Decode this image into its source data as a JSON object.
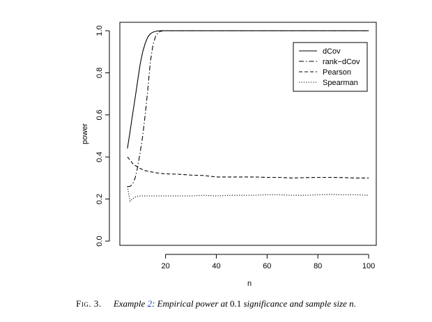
{
  "chart_data": {
    "type": "line",
    "xlabel": "n",
    "ylabel": "power",
    "xlim": [
      2,
      103
    ],
    "ylim": [
      -0.02,
      1.04
    ],
    "xticks": [
      20,
      40,
      60,
      80,
      100
    ],
    "yticks": [
      0.0,
      0.2,
      0.4,
      0.6,
      0.8,
      1.0
    ],
    "xtick_labels": [
      "20",
      "40",
      "60",
      "80",
      "100"
    ],
    "ytick_labels": [
      "0.0",
      "0.2",
      "0.4",
      "0.6",
      "0.8",
      "1.0"
    ],
    "grid": false,
    "legend_position": "top-right",
    "series": [
      {
        "name": "dCov",
        "line_style": "solid",
        "x": [
          5,
          6,
          7,
          8,
          9,
          10,
          11,
          12,
          13,
          14,
          15,
          16,
          17,
          18,
          19,
          20,
          25,
          30,
          40,
          50,
          60,
          70,
          80,
          90,
          100
        ],
        "y": [
          0.44,
          0.52,
          0.6,
          0.68,
          0.76,
          0.84,
          0.9,
          0.94,
          0.97,
          0.985,
          0.993,
          0.997,
          0.999,
          1.0,
          1.0,
          1.0,
          1.0,
          1.0,
          1.0,
          1.0,
          1.0,
          1.0,
          1.0,
          1.0,
          1.0
        ]
      },
      {
        "name": "rank−dCov",
        "line_style": "dashdot",
        "x": [
          5,
          6,
          7,
          8,
          9,
          10,
          11,
          12,
          13,
          14,
          15,
          16,
          17,
          18,
          19,
          20,
          25,
          30,
          40,
          50,
          60,
          70,
          80,
          90,
          100
        ],
        "y": [
          0.26,
          0.26,
          0.27,
          0.3,
          0.35,
          0.42,
          0.5,
          0.6,
          0.72,
          0.85,
          0.93,
          0.97,
          0.99,
          0.997,
          1.0,
          1.0,
          1.0,
          1.0,
          1.0,
          1.0,
          1.0,
          1.0,
          1.0,
          1.0,
          1.0
        ]
      },
      {
        "name": "Pearson",
        "line_style": "dashed",
        "x": [
          5,
          6,
          7,
          8,
          10,
          12,
          14,
          16,
          18,
          20,
          25,
          30,
          35,
          40,
          45,
          50,
          55,
          60,
          65,
          70,
          75,
          80,
          85,
          90,
          95,
          100
        ],
        "y": [
          0.4,
          0.385,
          0.37,
          0.36,
          0.345,
          0.335,
          0.33,
          0.325,
          0.322,
          0.32,
          0.318,
          0.314,
          0.312,
          0.305,
          0.305,
          0.305,
          0.305,
          0.303,
          0.303,
          0.3,
          0.302,
          0.303,
          0.303,
          0.302,
          0.3,
          0.3
        ]
      },
      {
        "name": "Spearman",
        "line_style": "dotted",
        "x": [
          5,
          6,
          7,
          8,
          10,
          12,
          14,
          16,
          18,
          20,
          25,
          30,
          35,
          40,
          45,
          50,
          55,
          60,
          65,
          70,
          75,
          80,
          85,
          90,
          95,
          100
        ],
        "y": [
          0.26,
          0.19,
          0.2,
          0.21,
          0.215,
          0.215,
          0.215,
          0.215,
          0.215,
          0.215,
          0.215,
          0.215,
          0.218,
          0.215,
          0.218,
          0.218,
          0.218,
          0.22,
          0.22,
          0.218,
          0.218,
          0.22,
          0.222,
          0.22,
          0.22,
          0.218
        ]
      }
    ]
  },
  "caption": {
    "figure_label": "Fig. 3.",
    "example_word": "Example",
    "example_ref": "2",
    "text_1": ": Empirical power at ",
    "value": "0.1",
    "text_2": " significance and sample size ",
    "var": "n",
    "end": "."
  }
}
